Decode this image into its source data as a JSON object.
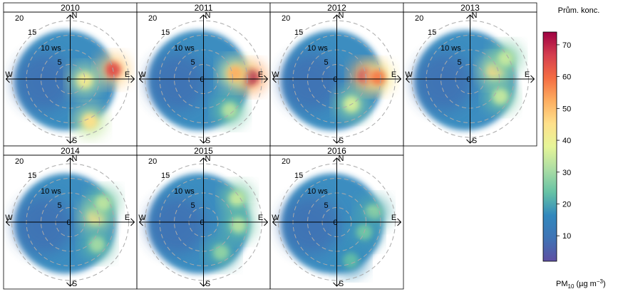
{
  "chart_data": {
    "type": "heatmap",
    "subtype": "polar-plot",
    "panels": [
      {
        "year": "2010",
        "hotspots": [
          {
            "dir": 78,
            "ws": 15,
            "value": 64
          },
          {
            "dir": 95,
            "ws": 5,
            "value": 42
          },
          {
            "dir": 155,
            "ws": 16,
            "value": 45
          }
        ]
      },
      {
        "year": "2011",
        "hotspots": [
          {
            "dir": 88,
            "ws": 16,
            "value": 72
          },
          {
            "dir": 80,
            "ws": 11,
            "value": 52
          },
          {
            "dir": 140,
            "ws": 14,
            "value": 32
          }
        ]
      },
      {
        "year": "2012",
        "hotspots": [
          {
            "dir": 85,
            "ws": 10,
            "value": 70
          },
          {
            "dir": 88,
            "ws": 14,
            "value": 58
          },
          {
            "dir": 150,
            "ws": 10,
            "value": 36
          }
        ]
      },
      {
        "year": "2013",
        "hotspots": [
          {
            "dir": 72,
            "ws": 9,
            "value": 46
          },
          {
            "dir": 60,
            "ws": 14,
            "value": 34
          },
          {
            "dir": 120,
            "ws": 12,
            "value": 34
          }
        ]
      },
      {
        "year": "2014",
        "hotspots": [
          {
            "dir": 78,
            "ws": 9,
            "value": 45
          },
          {
            "dir": 60,
            "ws": 13,
            "value": 33
          },
          {
            "dir": 130,
            "ws": 12,
            "value": 30
          }
        ]
      },
      {
        "year": "2015",
        "hotspots": [
          {
            "dir": 55,
            "ws": 14,
            "value": 34
          },
          {
            "dir": 95,
            "ws": 12,
            "value": 32
          },
          {
            "dir": 150,
            "ws": 12,
            "value": 28
          }
        ]
      },
      {
        "year": "2016",
        "hotspots": [
          {
            "dir": 75,
            "ws": 13,
            "value": 28
          },
          {
            "dir": 110,
            "ws": 10,
            "value": 25
          },
          {
            "dir": 160,
            "ws": 14,
            "value": 23
          }
        ]
      }
    ],
    "radial_labels": [
      "20",
      "15",
      "10 ws",
      "5",
      "0"
    ],
    "compass": {
      "n": "N",
      "e": "E",
      "s": "S",
      "w": "W"
    },
    "legend": {
      "title": "Prům. konc.",
      "ticks": [
        10,
        20,
        30,
        40,
        50,
        60,
        70
      ],
      "range": [
        2,
        74
      ]
    },
    "unit_label": "PM",
    "unit_sub": "10",
    "unit_rest": " (µg m",
    "unit_sup": "−3",
    "unit_close": ")"
  }
}
